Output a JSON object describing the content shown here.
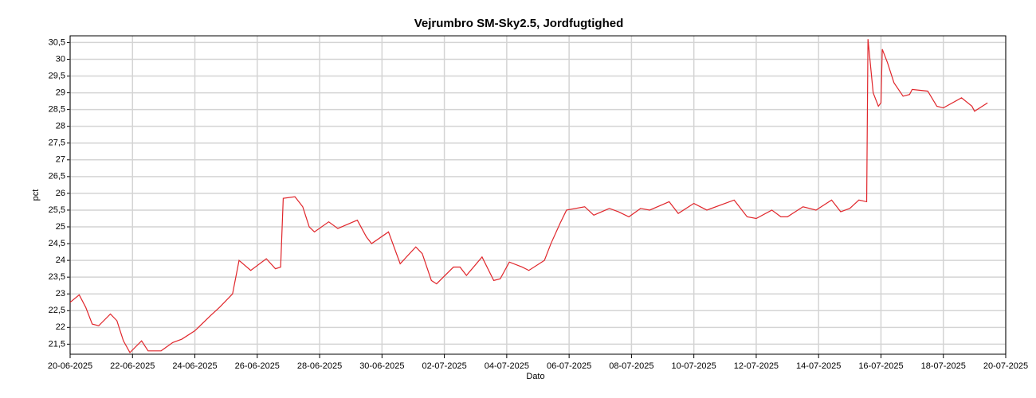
{
  "chart_data": {
    "type": "line",
    "title": "Vejrumbro SM-Sky2.5, Jordfugtighed",
    "x_label": "Dato",
    "y_label": "pct",
    "grid": true,
    "xlim": [
      "2025-06-20T00:00",
      "2025-07-20T00:00"
    ],
    "xticks": [
      {
        "value": "2025-06-20T00:00",
        "label": "20-06-2025"
      },
      {
        "value": "2025-06-22T00:00",
        "label": "22-06-2025"
      },
      {
        "value": "2025-06-24T00:00",
        "label": "24-06-2025"
      },
      {
        "value": "2025-06-26T00:00",
        "label": "26-06-2025"
      },
      {
        "value": "2025-06-28T00:00",
        "label": "28-06-2025"
      },
      {
        "value": "2025-06-30T00:00",
        "label": "30-06-2025"
      },
      {
        "value": "2025-07-02T00:00",
        "label": "02-07-2025"
      },
      {
        "value": "2025-07-04T00:00",
        "label": "04-07-2025"
      },
      {
        "value": "2025-07-06T00:00",
        "label": "06-07-2025"
      },
      {
        "value": "2025-07-08T00:00",
        "label": "08-07-2025"
      },
      {
        "value": "2025-07-10T00:00",
        "label": "10-07-2025"
      },
      {
        "value": "2025-07-12T00:00",
        "label": "12-07-2025"
      },
      {
        "value": "2025-07-14T00:00",
        "label": "14-07-2025"
      },
      {
        "value": "2025-07-16T00:00",
        "label": "16-07-2025"
      },
      {
        "value": "2025-07-18T00:00",
        "label": "18-07-2025"
      },
      {
        "value": "2025-07-20T00:00",
        "label": "20-07-2025"
      }
    ],
    "ylim": [
      21.2,
      30.7
    ],
    "yticks": [
      {
        "value": 21.5,
        "label": "21,5"
      },
      22,
      {
        "value": 22.5,
        "label": "22,5"
      },
      23,
      {
        "value": 23.5,
        "label": "23,5"
      },
      24,
      {
        "value": 24.5,
        "label": "24,5"
      },
      25,
      {
        "value": 25.5,
        "label": "25,5"
      },
      26,
      {
        "value": 26.5,
        "label": "26,5"
      },
      27,
      {
        "value": 27.5,
        "label": "27,5"
      },
      28,
      {
        "value": 28.5,
        "label": "28,5"
      },
      29,
      {
        "value": 29.5,
        "label": "29,5"
      },
      30,
      {
        "value": 30.5,
        "label": "30,5"
      }
    ],
    "x": [
      "2025-06-20T00:00",
      "2025-06-20T07:00",
      "2025-06-20T12:00",
      "2025-06-20T17:00",
      "2025-06-20T22:00",
      "2025-06-21T07:00",
      "2025-06-21T12:00",
      "2025-06-21T17:00",
      "2025-06-21T22:00",
      "2025-06-22T07:00",
      "2025-06-22T12:00",
      "2025-06-22T22:00",
      "2025-06-23T07:00",
      "2025-06-23T14:00",
      "2025-06-24T00:00",
      "2025-06-24T12:00",
      "2025-06-24T19:00",
      "2025-06-25T05:00",
      "2025-06-25T10:00",
      "2025-06-25T19:00",
      "2025-06-26T07:00",
      "2025-06-26T14:00",
      "2025-06-26T18:00",
      "2025-06-26T20:00",
      "2025-06-27T05:00",
      "2025-06-27T11:00",
      "2025-06-27T16:00",
      "2025-06-27T20:00",
      "2025-06-28T07:00",
      "2025-06-28T14:00",
      "2025-06-29T05:00",
      "2025-06-29T12:00",
      "2025-06-29T16:00",
      "2025-06-30T05:00",
      "2025-06-30T14:00",
      "2025-07-01T02:00",
      "2025-07-01T07:00",
      "2025-07-01T14:00",
      "2025-07-01T18:00",
      "2025-07-02T07:00",
      "2025-07-02T12:00",
      "2025-07-02T17:00",
      "2025-07-03T05:00",
      "2025-07-03T14:00",
      "2025-07-03T19:00",
      "2025-07-04T02:00",
      "2025-07-04T12:00",
      "2025-07-04T17:00",
      "2025-07-05T05:00",
      "2025-07-05T10:00",
      "2025-07-05T17:00",
      "2025-07-05T22:00",
      "2025-07-06T12:00",
      "2025-07-06T19:00",
      "2025-07-07T07:00",
      "2025-07-07T14:00",
      "2025-07-07T22:00",
      "2025-07-08T07:00",
      "2025-07-08T14:00",
      "2025-07-09T05:00",
      "2025-07-09T12:00",
      "2025-07-10T00:00",
      "2025-07-10T10:00",
      "2025-07-11T07:00",
      "2025-07-11T17:00",
      "2025-07-12T00:00",
      "2025-07-12T12:00",
      "2025-07-12T19:00",
      "2025-07-13T00:00",
      "2025-07-13T12:00",
      "2025-07-13T22:00",
      "2025-07-14T10:00",
      "2025-07-14T17:00",
      "2025-07-15T00:00",
      "2025-07-15T07:00",
      "2025-07-15T13:00",
      "2025-07-15T14:00",
      "2025-07-15T18:00",
      "2025-07-15T22:00",
      "2025-07-16T00:00",
      "2025-07-16T01:00",
      "2025-07-16T05:00",
      "2025-07-16T10:00",
      "2025-07-16T17:00",
      "2025-07-16T22:00",
      "2025-07-17T00:00",
      "2025-07-17T12:00",
      "2025-07-17T19:00",
      "2025-07-18T00:00",
      "2025-07-18T14:00",
      "2025-07-18T22:00",
      "2025-07-19T00:00",
      "2025-07-19T10:00"
    ],
    "series": [
      {
        "color": "#e0262b",
        "values": [
          22.75,
          22.97,
          22.6,
          22.1,
          22.05,
          22.4,
          22.2,
          21.6,
          21.25,
          21.6,
          21.3,
          21.3,
          21.55,
          21.65,
          21.9,
          22.35,
          22.6,
          23.0,
          24.0,
          23.7,
          24.05,
          23.75,
          23.8,
          25.85,
          25.9,
          25.6,
          25.0,
          24.85,
          25.15,
          24.95,
          25.2,
          24.7,
          24.5,
          24.85,
          23.9,
          24.4,
          24.2,
          23.4,
          23.3,
          23.8,
          23.8,
          23.55,
          24.1,
          23.4,
          23.45,
          23.95,
          23.8,
          23.7,
          24.0,
          24.5,
          25.1,
          25.5,
          25.6,
          25.35,
          25.55,
          25.45,
          25.3,
          25.55,
          25.5,
          25.75,
          25.4,
          25.7,
          25.5,
          25.8,
          25.3,
          25.25,
          25.5,
          25.3,
          25.3,
          25.6,
          25.5,
          25.8,
          25.45,
          25.55,
          25.8,
          25.75,
          30.6,
          29.0,
          28.6,
          28.7,
          30.3,
          29.9,
          29.3,
          28.9,
          28.95,
          29.1,
          29.05,
          28.6,
          28.55,
          28.85,
          28.6,
          28.45,
          28.7
        ]
      }
    ]
  }
}
